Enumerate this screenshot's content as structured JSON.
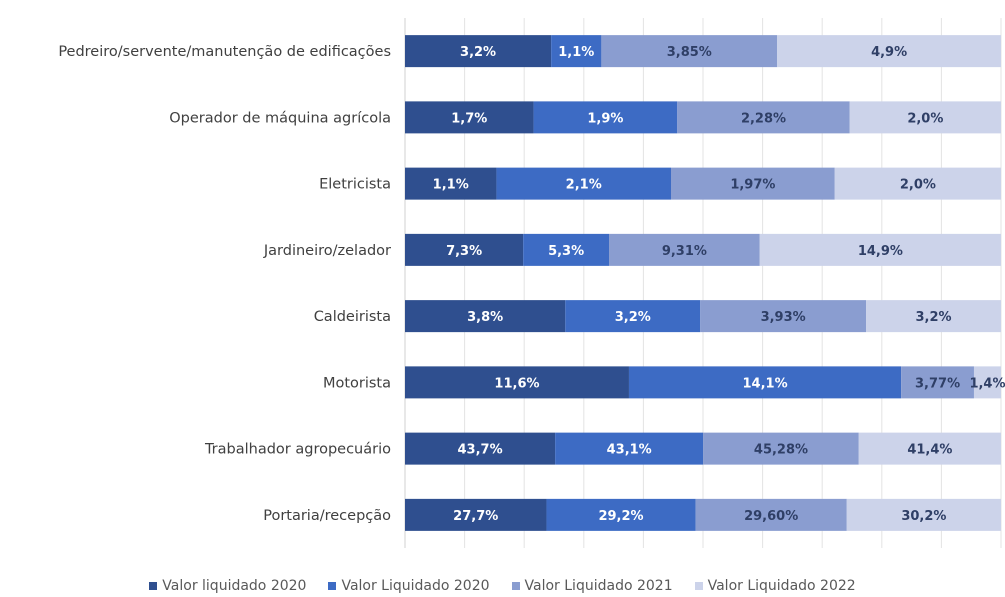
{
  "chart_data": {
    "type": "bar",
    "orientation": "horizontal",
    "stacking": "percent",
    "categories": [
      "Pedreiro/servente/manutenção de edificações",
      "Operador de máquina agrícola",
      "Eletricista",
      "Jardineiro/zelador",
      "Caldeirista",
      "Motorista",
      "Trabalhador agropecuário",
      "Portaria/recepção"
    ],
    "series": [
      {
        "name": "Valor liquidado 2020",
        "color": "#2f4f8f",
        "values": [
          3.2,
          1.7,
          1.1,
          7.3,
          3.8,
          11.6,
          43.7,
          27.7
        ],
        "labels": [
          "3,2%",
          "1,7%",
          "1,1%",
          "7,3%",
          "3,8%",
          "11,6%",
          "43,7%",
          "27,7%"
        ]
      },
      {
        "name": "Valor Liquidado 2020",
        "color": "#3d6bc4",
        "values": [
          1.1,
          1.9,
          2.1,
          5.3,
          3.2,
          14.1,
          43.1,
          29.2
        ],
        "labels": [
          "1,1%",
          "1,9%",
          "2,1%",
          "5,3%",
          "3,2%",
          "14,1%",
          "43,1%",
          "29,2%"
        ]
      },
      {
        "name": "Valor Liquidado 2021",
        "color": "#8a9dd0",
        "values": [
          3.85,
          2.28,
          1.97,
          9.31,
          3.93,
          3.77,
          45.28,
          29.6
        ],
        "labels": [
          "3,85%",
          "2,28%",
          "1,97%",
          "9,31%",
          "3,93%",
          "3,77%",
          "45,28%",
          "29,60%"
        ]
      },
      {
        "name": "Valor Liquidado 2022",
        "color": "#ccd3ea",
        "values": [
          4.9,
          2.0,
          2.0,
          14.9,
          3.2,
          1.4,
          41.4,
          30.2
        ],
        "labels": [
          "4,9%",
          "2,0%",
          "2,0%",
          "14,9%",
          "3,2%",
          "1,4%",
          "41,4%",
          "30,2%"
        ]
      }
    ],
    "grid": true,
    "legend_position": "bottom"
  }
}
